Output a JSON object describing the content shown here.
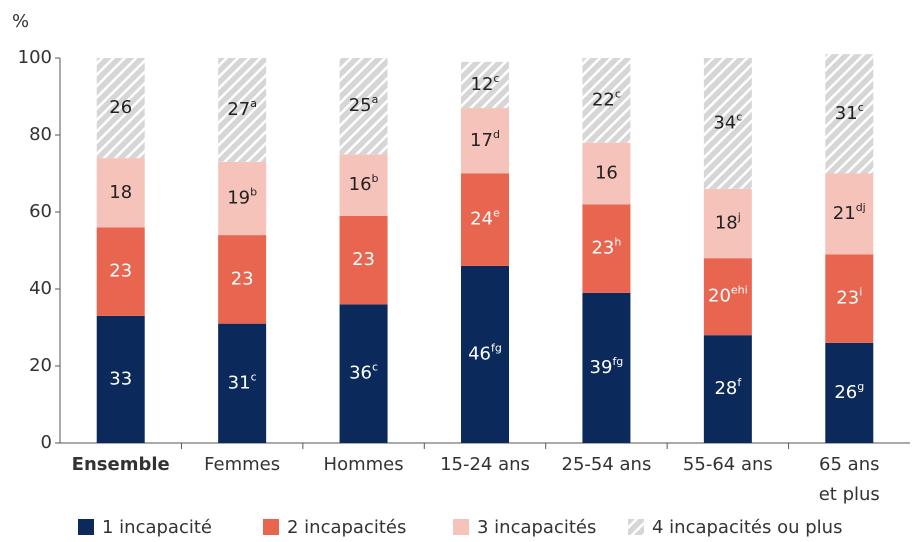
{
  "chart_data": {
    "type": "stacked_bar",
    "y_label": "%",
    "categories": [
      "Ensemble",
      "Femmes",
      "Hommes",
      "15-24 ans",
      "25-54 ans",
      "55-64 ans",
      "65 ans\net plus"
    ],
    "bold_categories": [
      "Ensemble"
    ],
    "ylim": [
      0,
      100
    ],
    "yticks": [
      0,
      20,
      40,
      60,
      80,
      100
    ],
    "series": [
      {
        "name": "1 incapacité",
        "color": "#0b2a5b",
        "label_color": "#ffffff",
        "values": [
          33,
          31,
          36,
          46,
          39,
          28,
          26
        ],
        "value_notes": [
          null,
          "c",
          "c",
          "fg",
          "fg",
          "f",
          "g"
        ]
      },
      {
        "name": "2 incapacités",
        "color": "#e8654f",
        "label_color": "#ffffff",
        "values": [
          23,
          23,
          23,
          24,
          23,
          20,
          23
        ],
        "value_notes": [
          null,
          null,
          null,
          "e",
          "h",
          "ehi",
          "i"
        ]
      },
      {
        "name": "3 incapacités",
        "color": "#f6c3ba",
        "label_color": "#222222",
        "values": [
          18,
          19,
          16,
          17,
          16,
          18,
          21
        ],
        "value_notes": [
          null,
          "b",
          "b",
          "d",
          null,
          "j",
          "dj"
        ]
      },
      {
        "name": "4 incapacités ou plus",
        "color": "hatch",
        "label_color": "#222222",
        "values": [
          26,
          27,
          25,
          12,
          22,
          34,
          31
        ],
        "value_notes": [
          null,
          "a",
          "a",
          "c",
          "c",
          "c",
          "c"
        ]
      }
    ]
  }
}
